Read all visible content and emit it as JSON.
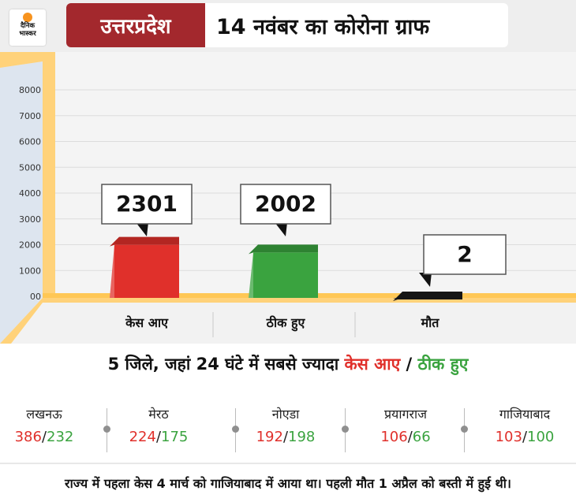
{
  "header": {
    "logo_line1": "दैनिक",
    "logo_line2": "भास्कर",
    "state": "उत्तरप्रदेश",
    "title": "14 नवंबर का कोरोना ग्राफ"
  },
  "chart_data": {
    "type": "bar",
    "categories": [
      "केस आए",
      "ठीक हुए",
      "मौत"
    ],
    "values": [
      2301,
      2002,
      2
    ],
    "ylim": [
      0,
      8000
    ],
    "yticks": [
      "00",
      "1000",
      "2000",
      "3000",
      "4000",
      "5000",
      "6000",
      "7000",
      "8000"
    ],
    "colors": [
      "#e0302b",
      "#3aa33f",
      "#1a1a1a"
    ],
    "grid": true,
    "data_labels": [
      "2301",
      "2002",
      "2"
    ]
  },
  "districts_section": {
    "title_prefix": "5 जिले, जहां 24 घंटे में सबसे ज्यादा ",
    "title_red": "केस आए",
    "title_sep": " / ",
    "title_green": "ठीक हुए",
    "items": [
      {
        "name": "लखनऊ",
        "cases": "386",
        "recovered": "232"
      },
      {
        "name": "मेरठ",
        "cases": "224",
        "recovered": "175"
      },
      {
        "name": "नोएडा",
        "cases": "192",
        "recovered": "198"
      },
      {
        "name": "प्रयागराज",
        "cases": "106",
        "recovered": "66"
      },
      {
        "name": "गाजियाबाद",
        "cases": "103",
        "recovered": "100"
      }
    ],
    "separator": "/"
  },
  "footer": {
    "note": "राज्य में पहला केस 4 मार्च को गाजियाबाद में आया था। पहली मौत 1 अप्रैल को बस्ती में हुई थी।"
  }
}
